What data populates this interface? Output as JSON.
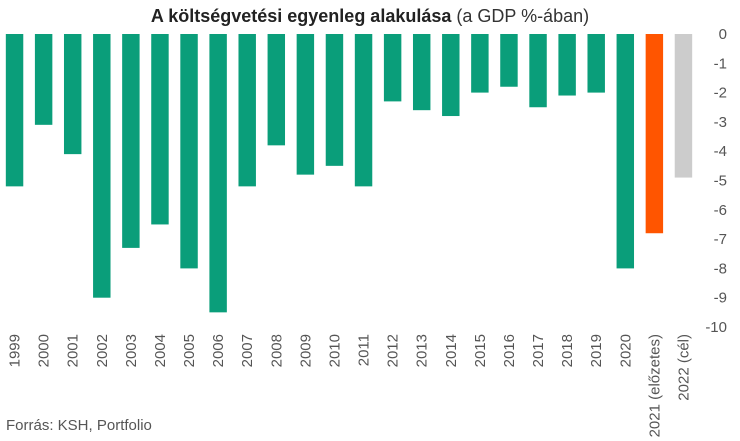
{
  "chart_data": {
    "type": "bar",
    "title": "A költségvetési egyenleg alakulása",
    "subtitle": "(a GDP %-ában)",
    "categories": [
      "1999",
      "2000",
      "2001",
      "2002",
      "2003",
      "2004",
      "2005",
      "2006",
      "2007",
      "2008",
      "2009",
      "2010",
      "2011",
      "2012",
      "2013",
      "2014",
      "2015",
      "2016",
      "2017",
      "2018",
      "2019",
      "2020",
      "2021 (előzetes)",
      "2022 (cél)"
    ],
    "values": [
      -5.2,
      -3.1,
      -4.1,
      -9.0,
      -7.3,
      -6.5,
      -8.0,
      -9.5,
      -5.2,
      -3.8,
      -4.8,
      -4.5,
      -5.2,
      -2.3,
      -2.6,
      -2.8,
      -2.0,
      -1.8,
      -2.5,
      -2.1,
      -2.0,
      -8.0,
      -6.8,
      -4.9
    ],
    "bar_colors": [
      "#0a9e7a",
      "#0a9e7a",
      "#0a9e7a",
      "#0a9e7a",
      "#0a9e7a",
      "#0a9e7a",
      "#0a9e7a",
      "#0a9e7a",
      "#0a9e7a",
      "#0a9e7a",
      "#0a9e7a",
      "#0a9e7a",
      "#0a9e7a",
      "#0a9e7a",
      "#0a9e7a",
      "#0a9e7a",
      "#0a9e7a",
      "#0a9e7a",
      "#0a9e7a",
      "#0a9e7a",
      "#0a9e7a",
      "#0a9e7a",
      "#ff5500",
      "#cccccc"
    ],
    "ylim": [
      -10,
      0
    ],
    "yticks": [
      0,
      -1,
      -2,
      -3,
      -4,
      -5,
      -6,
      -7,
      -8,
      -9,
      -10
    ],
    "ytick_labels": [
      "0",
      "-1",
      "-2",
      "-3",
      "-4",
      "-5",
      "-6",
      "-7",
      "-8",
      "-9",
      "-10"
    ],
    "y_axis_position": "right",
    "grid": false,
    "xlabel": "",
    "ylabel": ""
  },
  "source_text": "Forrás: KSH, Portfolio"
}
